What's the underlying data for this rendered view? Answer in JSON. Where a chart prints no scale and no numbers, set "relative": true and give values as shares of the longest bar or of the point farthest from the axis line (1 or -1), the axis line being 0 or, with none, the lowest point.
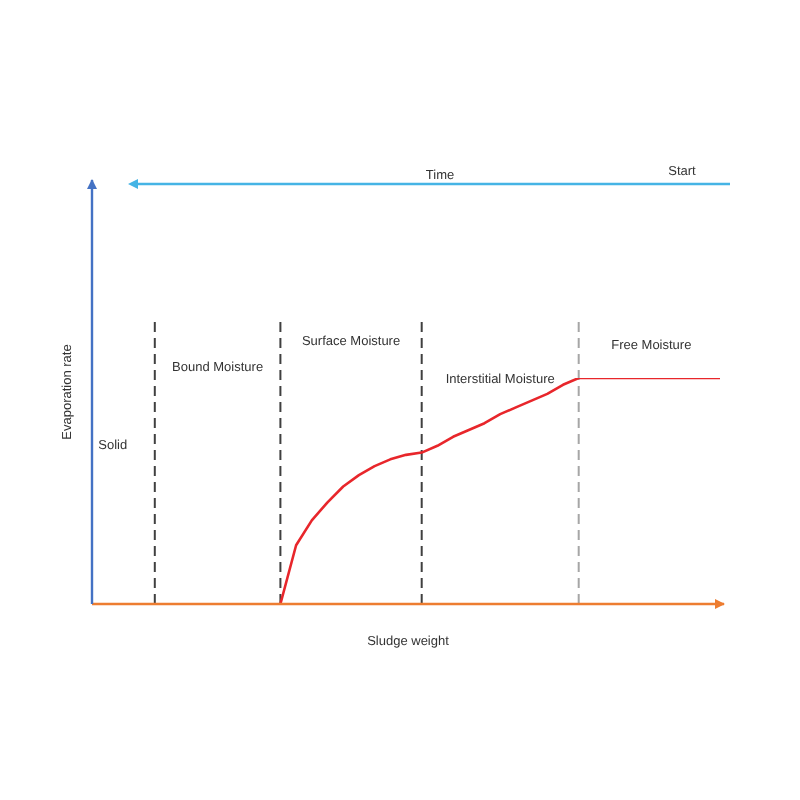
{
  "chart_data": {
    "type": "line",
    "relative": true,
    "xlabel": "Sludge weight",
    "ylabel": "Evaporation rate",
    "grid": "x",
    "categories": [
      null,
      null,
      null,
      null,
      null,
      null,
      null,
      null,
      null,
      null,
      null,
      null,
      null,
      null,
      null,
      null,
      null,
      null,
      null,
      null,
      null,
      null,
      null,
      null,
      null,
      null,
      null,
      null,
      null,
      null,
      null,
      null,
      null,
      null,
      null,
      null,
      null,
      null,
      null,
      null,
      null
    ],
    "series": [
      {
        "color": "#e8262b",
        "values": [
          null,
          null,
          null,
          null,
          null,
          null,
          null,
          null,
          null,
          null,
          null,
          null,
          0,
          0.26,
          0.37,
          0.45,
          0.52,
          0.57,
          0.61,
          0.64,
          0.66,
          0.67,
          0.7,
          0.74,
          0.77,
          0.8,
          0.84,
          0.87,
          0.9,
          0.93,
          0.97,
          1,
          1,
          1,
          1,
          1,
          1,
          1,
          1,
          1,
          1
        ]
      }
    ],
    "annotations": [
      "Time",
      "Start",
      "Solid",
      "Bound Moisture",
      "Surface Moisture",
      "Interstitial Moisture",
      "Free Moisture"
    ]
  }
}
